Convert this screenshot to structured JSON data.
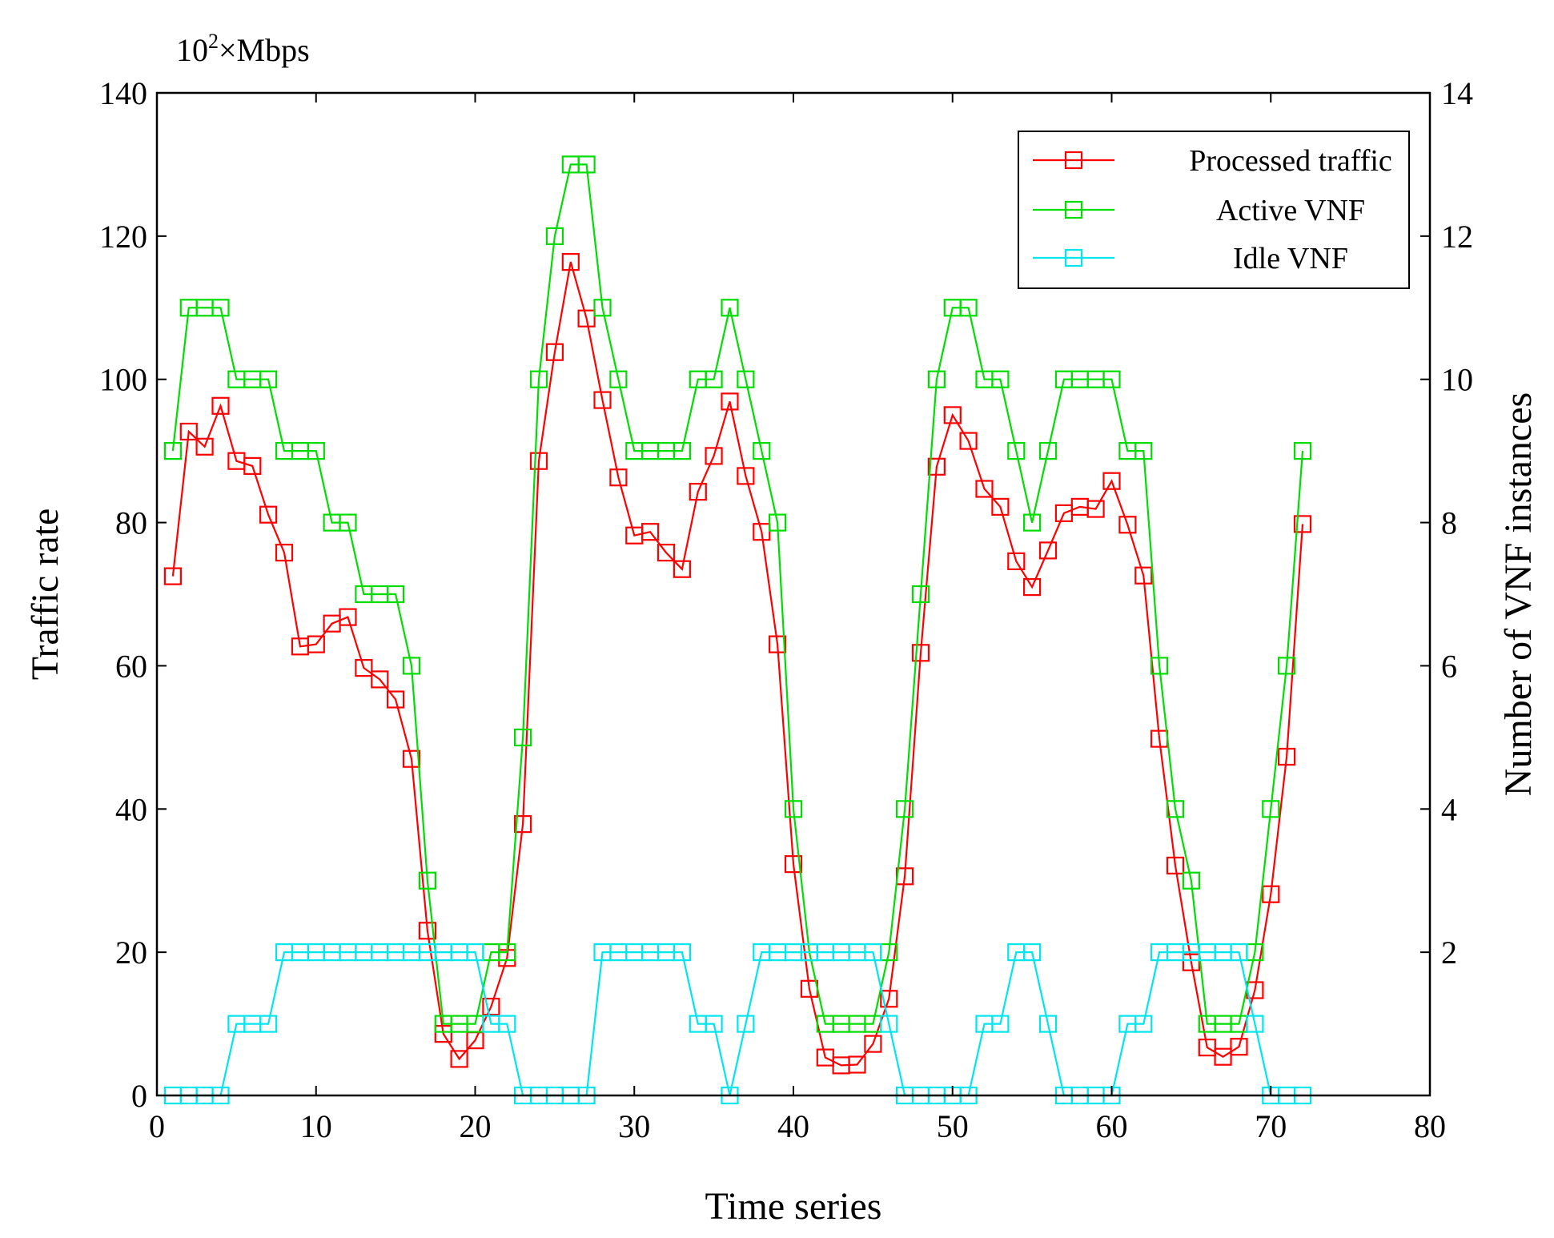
{
  "chart_data": {
    "type": "line",
    "unit_label": {
      "base": "10",
      "exponent": "2",
      "rest": "×Mbps"
    },
    "xlabel": "Time series",
    "ylabel_left": "Traffic rate",
    "ylabel_right": "Number of VNF instances",
    "xlim": [
      0,
      80
    ],
    "ylim_left": [
      0,
      140
    ],
    "ylim_right": [
      0,
      14
    ],
    "x_ticks": [
      0,
      10,
      20,
      30,
      40,
      50,
      60,
      70,
      80
    ],
    "y_ticks_left": [
      0,
      20,
      40,
      60,
      80,
      100,
      120,
      140
    ],
    "y_ticks_right": [
      2,
      4,
      6,
      8,
      10,
      12,
      14
    ],
    "grid": false,
    "legend_position": "top-right",
    "marker": "square",
    "series": [
      {
        "name": "Processed traffic",
        "axis": "left",
        "color": "#ff0000",
        "x": [
          1,
          2,
          3,
          4,
          5,
          6,
          7,
          8,
          9,
          10,
          11,
          12,
          13,
          14,
          15,
          16,
          17,
          18,
          19,
          20,
          21,
          22,
          23,
          24,
          25,
          26,
          27,
          28,
          29,
          30,
          31,
          32,
          33,
          34,
          35,
          36,
          37,
          38,
          39,
          40,
          41,
          42,
          43,
          44,
          45,
          46,
          47,
          48,
          49,
          50,
          51,
          52,
          53,
          54,
          55,
          56,
          57,
          58,
          59,
          60,
          61,
          62,
          63,
          64,
          65,
          66,
          67,
          68,
          69,
          70,
          71,
          72
        ],
        "values": [
          72.5,
          92.7,
          90.6,
          96.3,
          88.6,
          87.9,
          81.1,
          75.8,
          62.7,
          63.0,
          65.9,
          66.8,
          59.7,
          58.1,
          55.3,
          47.0,
          23.0,
          8.6,
          5.1,
          7.7,
          12.4,
          19.2,
          37.9,
          88.6,
          103.8,
          116.4,
          108.5,
          97.1,
          86.3,
          78.2,
          78.7,
          75.8,
          73.5,
          84.3,
          89.3,
          96.9,
          86.5,
          78.7,
          63.0,
          32.3,
          14.9,
          5.3,
          4.2,
          4.3,
          7.2,
          13.5,
          30.6,
          61.8,
          87.8,
          95.0,
          91.4,
          84.7,
          82.2,
          74.6,
          71.0,
          76.1,
          81.3,
          82.2,
          81.9,
          85.8,
          79.7,
          72.6,
          49.8,
          32.1,
          18.6,
          6.7,
          5.4,
          6.8,
          14.7,
          28.1,
          47.3,
          79.8
        ]
      },
      {
        "name": "Active VNF",
        "axis": "right",
        "color": "#00dd00",
        "x": [
          1,
          2,
          3,
          4,
          5,
          6,
          7,
          8,
          9,
          10,
          11,
          12,
          13,
          14,
          15,
          16,
          17,
          18,
          19,
          20,
          21,
          22,
          23,
          24,
          25,
          26,
          27,
          28,
          29,
          30,
          31,
          32,
          33,
          34,
          35,
          36,
          37,
          38,
          39,
          40,
          41,
          42,
          43,
          44,
          45,
          46,
          47,
          48,
          49,
          50,
          51,
          52,
          53,
          54,
          55,
          56,
          57,
          58,
          59,
          60,
          61,
          62,
          63,
          64,
          65,
          66,
          67,
          68,
          69,
          70,
          71,
          72
        ],
        "values": [
          9,
          11,
          11,
          11,
          10,
          10,
          10,
          9,
          9,
          9,
          8,
          8,
          7,
          7,
          7,
          6,
          3,
          1,
          1,
          1,
          2,
          2,
          5,
          10,
          12,
          13,
          13,
          11,
          10,
          9,
          9,
          9,
          9,
          10,
          10,
          11,
          10,
          9,
          8,
          4,
          2,
          1,
          1,
          1,
          1,
          2,
          4,
          7,
          10,
          11,
          11,
          10,
          10,
          9,
          8,
          9,
          10,
          10,
          10,
          10,
          9,
          9,
          6,
          4,
          3,
          1,
          1,
          1,
          2,
          4,
          6,
          9
        ]
      },
      {
        "name": "Idle VNF",
        "axis": "right",
        "color": "#00e5ee",
        "x": [
          1,
          2,
          3,
          4,
          5,
          6,
          7,
          8,
          9,
          10,
          11,
          12,
          13,
          14,
          15,
          16,
          17,
          18,
          19,
          20,
          21,
          22,
          23,
          24,
          25,
          26,
          27,
          28,
          29,
          30,
          31,
          32,
          33,
          34,
          35,
          36,
          37,
          38,
          39,
          40,
          41,
          42,
          43,
          44,
          45,
          46,
          47,
          48,
          49,
          50,
          51,
          52,
          53,
          54,
          55,
          56,
          57,
          58,
          59,
          60,
          61,
          62,
          63,
          64,
          65,
          66,
          67,
          68,
          69,
          70,
          71,
          72
        ],
        "values": [
          0,
          0,
          0,
          0,
          1,
          1,
          1,
          2,
          2,
          2,
          2,
          2,
          2,
          2,
          2,
          2,
          2,
          2,
          2,
          2,
          1,
          1,
          0,
          0,
          0,
          0,
          0,
          2,
          2,
          2,
          2,
          2,
          2,
          1,
          1,
          0,
          1,
          2,
          2,
          2,
          2,
          2,
          2,
          2,
          2,
          1,
          0,
          0,
          0,
          0,
          0,
          1,
          1,
          2,
          2,
          1,
          0,
          0,
          0,
          0,
          1,
          1,
          2,
          2,
          2,
          2,
          2,
          2,
          1,
          0,
          0,
          0
        ]
      }
    ]
  }
}
